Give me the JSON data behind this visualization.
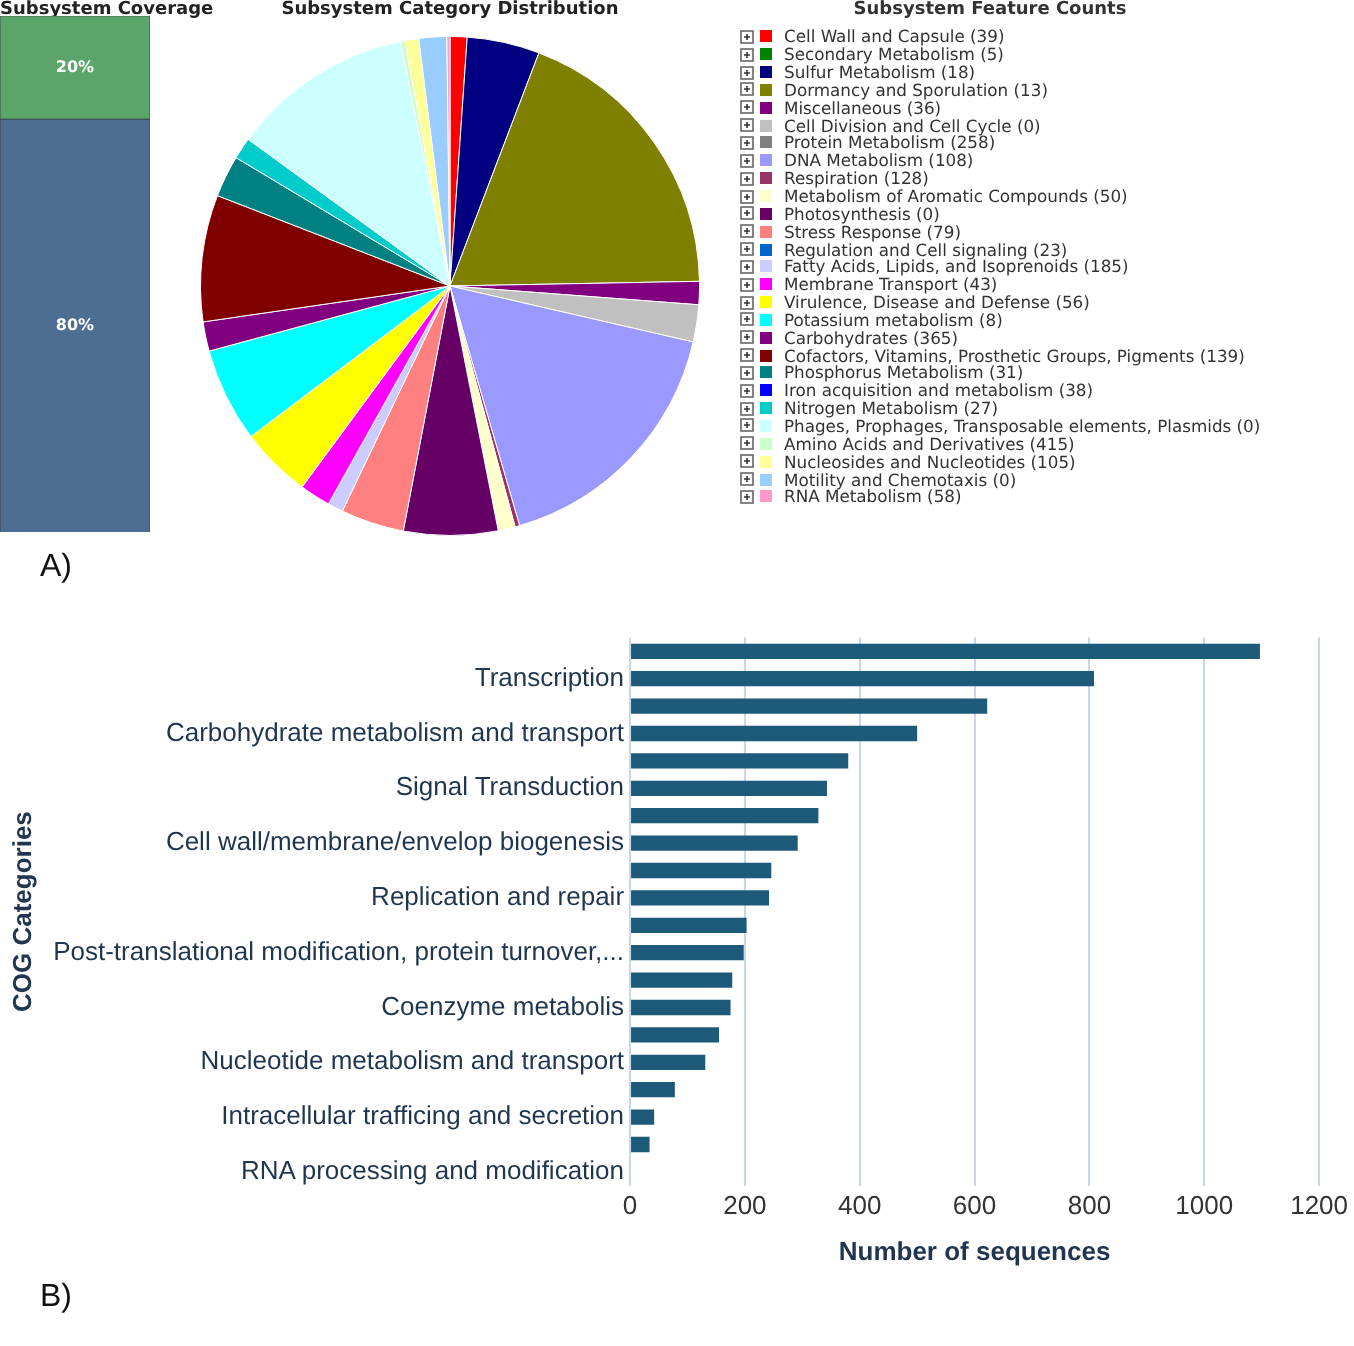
{
  "chart_data": [
    {
      "type": "bar",
      "title": "Subsystem Coverage",
      "categories": [
        null
      ],
      "stacked": true,
      "series": [
        {
          "color": "#4e6d92",
          "values": [
            80
          ],
          "value_labels": [
            "80%"
          ]
        },
        {
          "color": "#5ba56a",
          "values": [
            20
          ],
          "value_labels": [
            "20%"
          ]
        }
      ],
      "annotations": [
        "A)"
      ]
    },
    {
      "type": "pie",
      "title": "Subsystem Category Distribution",
      "legend_title": "Subsystem Feature Counts",
      "legend": "right",
      "categories": [
        "Cell Wall and Capsule (39)",
        "Secondary Metabolism (5)",
        "Sulfur Metabolism (18)",
        "Dormancy and Sporulation (13)",
        "Miscellaneous (36)",
        "Cell Division and Cell Cycle (0)",
        "Protein Metabolism (258)",
        "DNA Metabolism (108)",
        "Respiration (128)",
        "Metabolism of Aromatic Compounds (50)",
        "Photosynthesis (0)",
        "Stress Response (79)",
        "Regulation and Cell signaling (23)",
        "Fatty Acids, Lipids, and Isoprenoids (185)",
        "Membrane Transport (43)",
        "Virulence, Disease and Defense (56)",
        "Potassium metabolism (8)",
        "Carbohydrates (365)",
        "Cofactors, Vitamins, Prosthetic Groups, Pigments (139)",
        "Phosphorus Metabolism (31)",
        "Iron acquisition and metabolism (38)",
        "Nitrogen Metabolism (27)",
        "Phages, Prophages, Transposable elements, Plasmids (0)",
        "Amino Acids and Derivatives (415)",
        "Nucleosides and Nucleotides (105)",
        "Motility and Chemotaxis (0)",
        "RNA Metabolism (58)"
      ],
      "values": [
        1.1,
        0,
        4.7,
        18.9,
        1.5,
        2.4,
        0,
        16.9,
        0.3,
        1.1,
        6.1,
        4.1,
        0,
        1,
        2,
        4.6,
        6.1,
        1.9,
        8.2,
        2.7,
        0,
        1.4,
        11.8,
        0.3,
        0.9,
        1.8,
        0.2
      ],
      "colors": [
        "#ff0000",
        "#008000",
        "#000080",
        "#808000",
        "#800080",
        "#c0c0c0",
        "#808080",
        "#9999ff",
        "#993366",
        "#ffffcc",
        "#660066",
        "#ff8080",
        "#0066cc",
        "#ccccff",
        "#ff00ff",
        "#ffff00",
        "#00ffff",
        "#800080",
        "#800000",
        "#008080",
        "#0000ff",
        "#00cccc",
        "#ccffff",
        "#ccffcc",
        "#ffff99",
        "#99ccff",
        "#ff99cc"
      ]
    },
    {
      "type": "bar",
      "orientation": "horizontal",
      "ylabel": "COG Categories",
      "xlabel": "Number of sequences",
      "categories": [
        null,
        "Transcription",
        null,
        "Carbohydrate metabolism and transport",
        null,
        "Signal Transduction",
        null,
        "Cell wall/membrane/envelop biogenesis",
        null,
        "Replication and repair",
        null,
        "Post-translational modification, protein turnover,...",
        null,
        "Coenzyme metabolis",
        null,
        "Nucleotide metabolism and transport",
        null,
        "Intracellular trafficing and secretion",
        null,
        "RNA processing and modification"
      ],
      "values": [
        1097,
        808,
        622,
        500,
        380,
        343,
        328,
        292,
        246,
        242,
        203,
        198,
        178,
        175,
        155,
        131,
        78,
        42,
        34,
        0
      ],
      "color": "#1d5a7a",
      "xlim": [
        0,
        1200
      ],
      "xticks": [
        0,
        200,
        400,
        600,
        800,
        1000,
        1200
      ],
      "grid": "x",
      "annotations": [
        "B)"
      ]
    }
  ]
}
